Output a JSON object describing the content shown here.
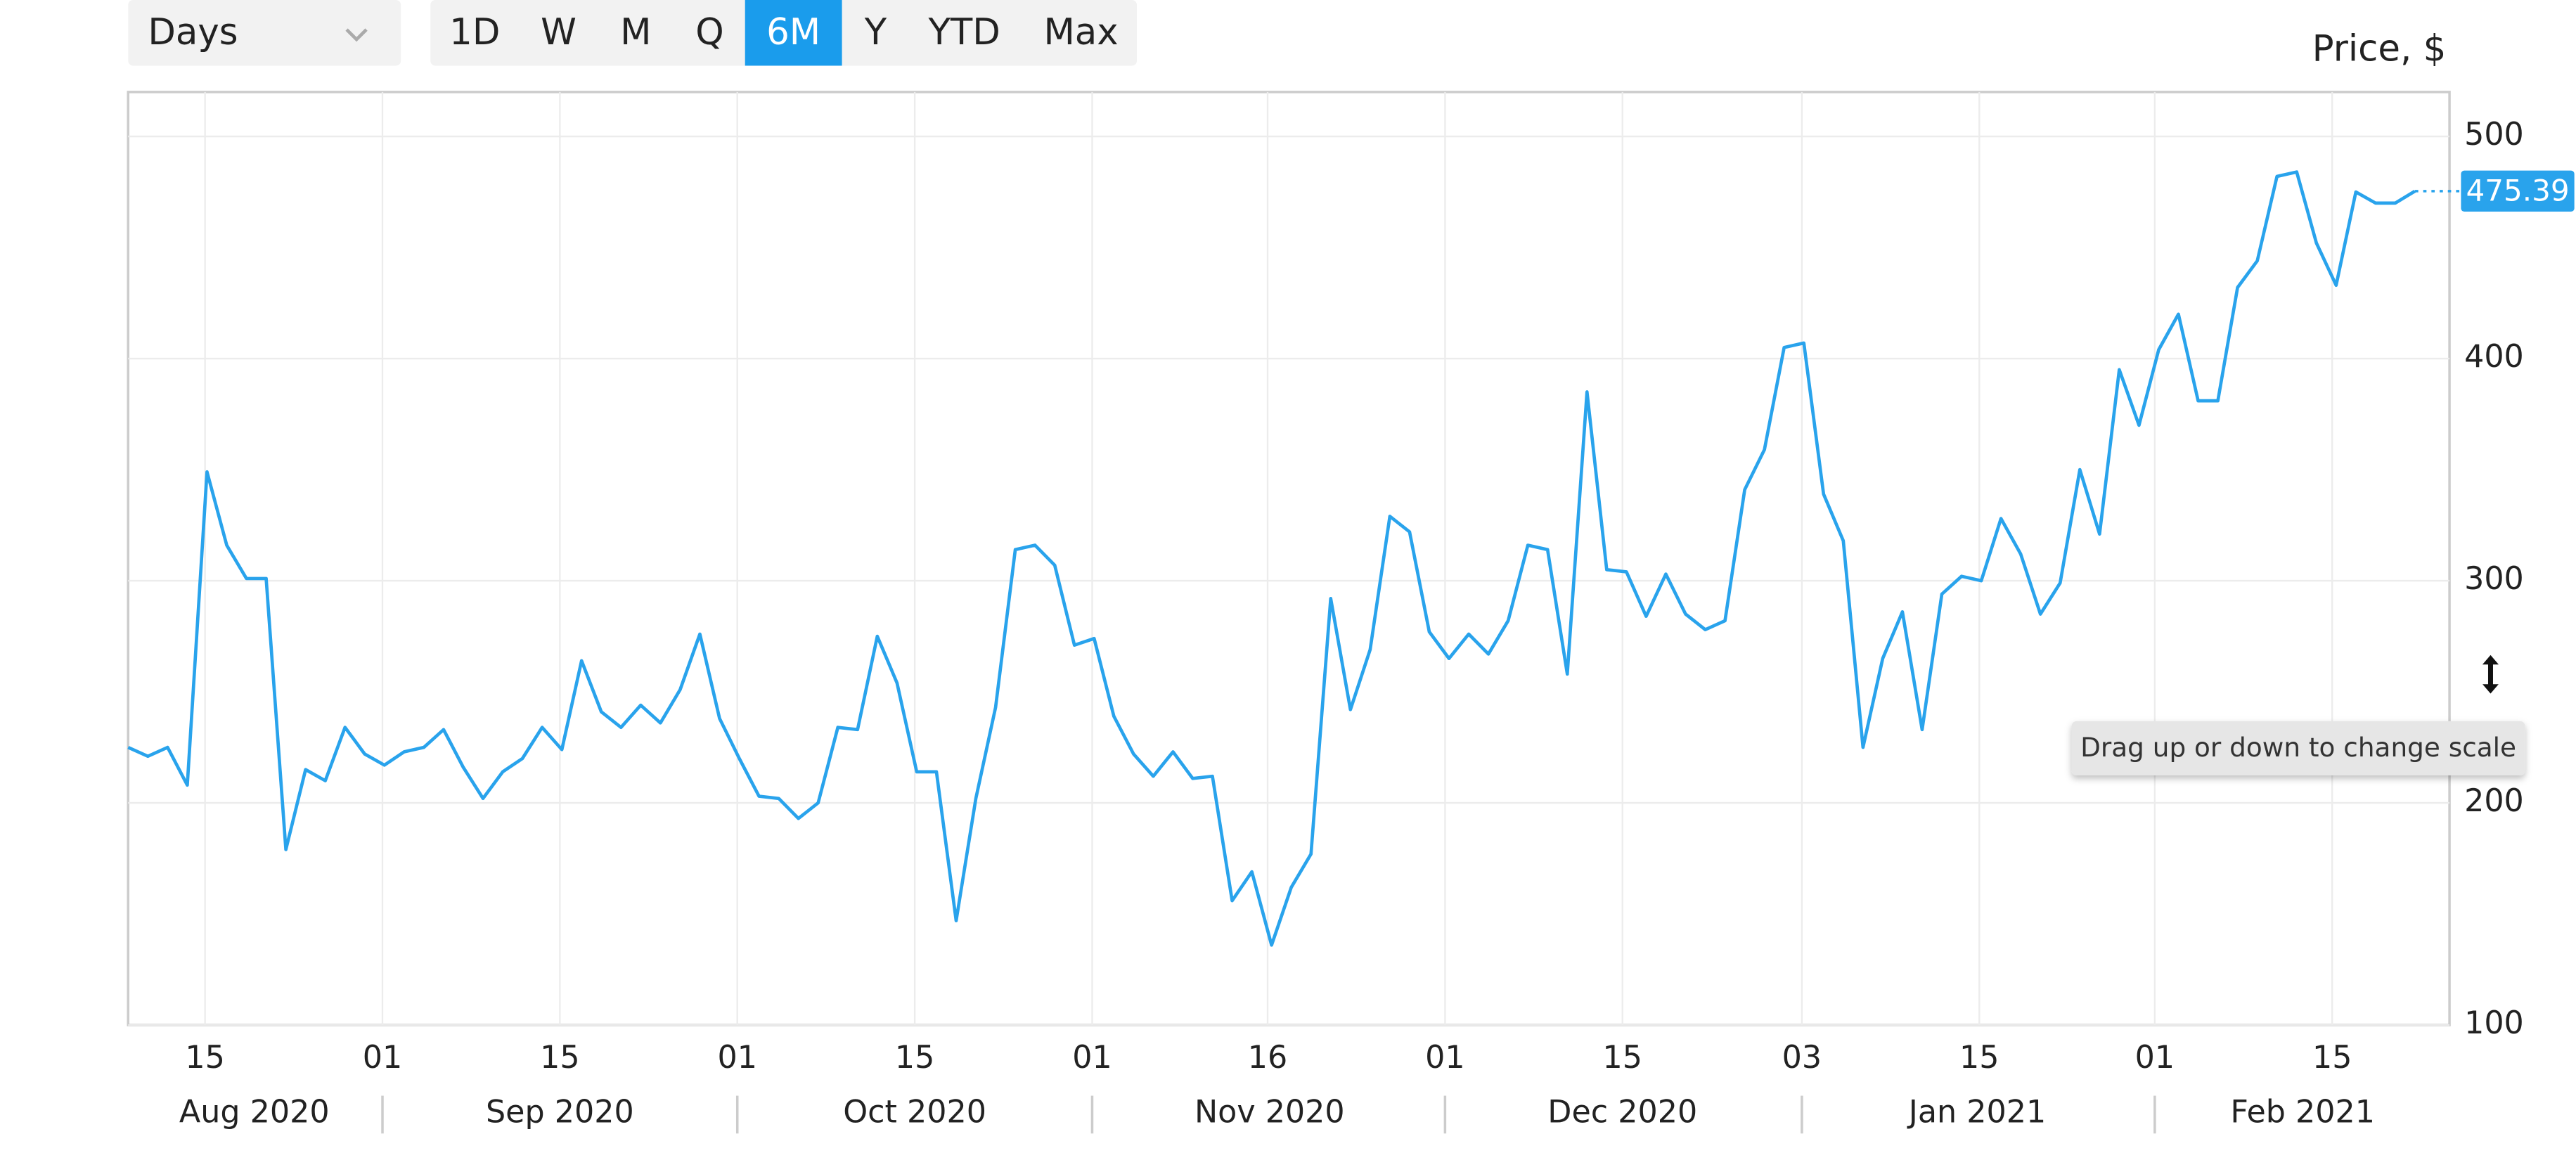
{
  "toolbar": {
    "dropdown": "Days",
    "buttons": [
      "1D",
      "W",
      "M",
      "Q",
      "6M",
      "Y",
      "YTD",
      "Max"
    ],
    "active": 4
  },
  "tooltip": "Drag up or down to change scale",
  "chart_data": {
    "type": "line",
    "y_axis_label": "Price, $",
    "color": "#29a3ec",
    "grid": true,
    "values": [
      225,
      221,
      225,
      208,
      349,
      316,
      301,
      301,
      179,
      215,
      210,
      234,
      222,
      217,
      223,
      225,
      233,
      216,
      202,
      214,
      220,
      234,
      224,
      264,
      241,
      234,
      244,
      236,
      251,
      276,
      238,
      220,
      203,
      202,
      193,
      200,
      234,
      233,
      275,
      254,
      214,
      214,
      147,
      202,
      243,
      314,
      316,
      307,
      271,
      274,
      239,
      222,
      212,
      223,
      211,
      212,
      156,
      169,
      136,
      162,
      177,
      292,
      242,
      269,
      329,
      322,
      277,
      265,
      276,
      267,
      282,
      316,
      314,
      258,
      385,
      305,
      304,
      284,
      303,
      285,
      278,
      282,
      341,
      359,
      405,
      407,
      339,
      318,
      225,
      265,
      286,
      233,
      294,
      302,
      300,
      328,
      312,
      285,
      299,
      350,
      321,
      395,
      370,
      404,
      420,
      381,
      381,
      432,
      444,
      482,
      484,
      452,
      433,
      475,
      470,
      470,
      475.39
    ],
    "xlim": [
      0,
      117.75
    ],
    "xticks": [
      {
        "value": 3.9,
        "label": "15"
      },
      {
        "value": 12.9,
        "label": "01"
      },
      {
        "value": 21.9,
        "label": "15"
      },
      {
        "value": 30.9,
        "label": "01"
      },
      {
        "value": 39.9,
        "label": "15"
      },
      {
        "value": 48.9,
        "label": "01"
      },
      {
        "value": 57.8,
        "label": "16"
      },
      {
        "value": 66.8,
        "label": "01"
      },
      {
        "value": 75.8,
        "label": "15"
      },
      {
        "value": 84.9,
        "label": "03"
      },
      {
        "value": 93.9,
        "label": "15"
      },
      {
        "value": 102.8,
        "label": "01"
      },
      {
        "value": 111.8,
        "label": "15"
      }
    ],
    "months": [
      {
        "value": 6.4,
        "label": "Aug 2020"
      },
      {
        "value": 21.9,
        "label": "Sep 2020"
      },
      {
        "value": 39.9,
        "label": "Oct 2020"
      },
      {
        "value": 57.9,
        "label": "Nov 2020"
      },
      {
        "value": 75.8,
        "label": "Dec 2020"
      },
      {
        "value": 93.8,
        "label": "Jan 2021"
      },
      {
        "value": 110.3,
        "label": "Feb 2021"
      }
    ],
    "ylim": [
      100,
      520
    ],
    "yticks": [
      100,
      200,
      300,
      400,
      500
    ]
  }
}
